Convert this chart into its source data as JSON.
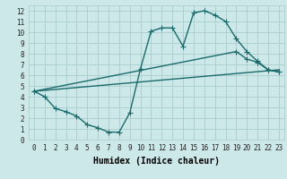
{
  "xlabel": "Humidex (Indice chaleur)",
  "bg_color": "#cce8e8",
  "grid_color": "#aacccc",
  "line_color": "#1a6b6b",
  "xlim": [
    -0.5,
    23.5
  ],
  "ylim": [
    0,
    12.5
  ],
  "xticks": [
    0,
    1,
    2,
    3,
    4,
    5,
    6,
    7,
    8,
    9,
    10,
    11,
    12,
    13,
    14,
    15,
    16,
    17,
    18,
    19,
    20,
    21,
    22,
    23
  ],
  "yticks": [
    0,
    1,
    2,
    3,
    4,
    5,
    6,
    7,
    8,
    9,
    10,
    11,
    12
  ],
  "curve1_x": [
    0,
    1,
    2,
    3,
    4,
    5,
    6,
    7,
    8,
    9,
    10,
    11,
    12,
    13,
    14,
    15,
    16,
    17,
    18,
    19,
    20,
    21,
    22,
    23
  ],
  "curve1_y": [
    4.5,
    4.0,
    2.9,
    2.6,
    2.2,
    1.4,
    1.1,
    0.7,
    0.7,
    2.5,
    6.6,
    10.1,
    10.4,
    10.4,
    8.7,
    11.8,
    12.0,
    11.6,
    11.0,
    9.4,
    8.2,
    7.3,
    6.5,
    6.3
  ],
  "curve2_x": [
    0,
    23
  ],
  "curve2_y": [
    4.5,
    6.5
  ],
  "curve3_x": [
    0,
    19,
    20,
    21,
    22,
    23
  ],
  "curve3_y": [
    4.5,
    8.2,
    7.5,
    7.2,
    6.5,
    6.3
  ],
  "marker": "+",
  "markersize": 4,
  "linewidth": 1.0,
  "xlabel_fontsize": 7,
  "tick_fontsize": 5.5
}
